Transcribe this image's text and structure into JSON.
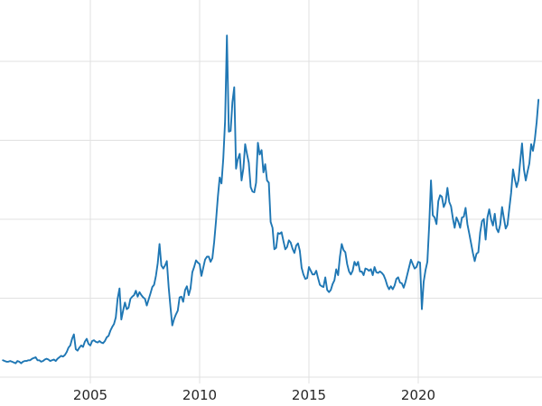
{
  "chart": {
    "line_color": "#1f77b4",
    "grid_color": "#e1e1e1",
    "tick_label_color": "#262626"
  },
  "chart_data": {
    "type": "line",
    "title": "",
    "xlabel": "",
    "ylabel": "",
    "legend": false,
    "grid": true,
    "x_tick_labels": [
      "2005",
      "2010",
      "2015",
      "2020"
    ],
    "x_ticks": [
      2005,
      2010,
      2015,
      2020
    ],
    "x_start_year": 2001,
    "x_step_years": 0.0833333,
    "xlim": [
      2000.9,
      2025.6
    ],
    "ylim": [
      0,
      53
    ],
    "values": [
      4.6,
      4.5,
      4.4,
      4.4,
      4.5,
      4.4,
      4.3,
      4.2,
      4.5,
      4.4,
      4.2,
      4.4,
      4.5,
      4.5,
      4.6,
      4.6,
      4.8,
      4.9,
      5.0,
      4.6,
      4.6,
      4.4,
      4.5,
      4.7,
      4.8,
      4.7,
      4.5,
      4.6,
      4.7,
      4.5,
      4.8,
      5.0,
      5.2,
      5.1,
      5.3,
      5.7,
      6.3,
      6.6,
      7.5,
      8.1,
      6.1,
      5.9,
      6.3,
      6.6,
      6.4,
      7.1,
      7.5,
      6.8,
      6.6,
      7.2,
      7.3,
      7.1,
      7.0,
      7.2,
      7.0,
      6.9,
      7.2,
      7.7,
      7.9,
      8.6,
      9.1,
      9.5,
      10.4,
      12.9,
      14.3,
      10.1,
      11.3,
      12.4,
      11.5,
      11.7,
      12.9,
      13.2,
      13.4,
      14.0,
      13.2,
      13.8,
      13.4,
      13.1,
      12.9,
      12.0,
      12.8,
      13.6,
      14.5,
      14.8,
      16.0,
      17.7,
      20.3,
      17.4,
      17.0,
      17.4,
      18.0,
      14.5,
      11.8,
      9.3,
      10.2,
      10.8,
      11.3,
      13.1,
      13.2,
      12.5,
      14.1,
      14.6,
      13.4,
      14.3,
      16.5,
      17.2,
      18.1,
      17.8,
      17.6,
      16.0,
      17.1,
      18.2,
      18.6,
      18.6,
      17.9,
      18.4,
      20.6,
      23.4,
      26.7,
      29.3,
      28.5,
      31.9,
      37.0,
      48.5,
      35.5,
      35.6,
      39.5,
      41.5,
      30.5,
      31.8,
      32.5,
      28.9,
      30.5,
      33.8,
      32.5,
      31.3,
      28.0,
      27.4,
      27.3,
      28.6,
      34.0,
      32.4,
      33.0,
      30.0,
      31.1,
      28.9,
      28.6,
      23.3,
      22.5,
      19.6,
      19.8,
      21.8,
      21.7,
      21.9,
      20.7,
      19.6,
      19.9,
      20.8,
      20.5,
      19.7,
      19.1,
      20.1,
      20.4,
      19.4,
      17.1,
      16.2,
      15.6,
      15.7,
      17.2,
      16.7,
      16.2,
      16.2,
      16.7,
      15.7,
      14.8,
      14.6,
      14.5,
      15.8,
      14.1,
      13.8,
      14.1,
      14.9,
      15.4,
      16.9,
      16.1,
      18.6,
      20.3,
      19.5,
      19.2,
      17.6,
      16.6,
      16.2,
      16.7,
      17.9,
      17.4,
      17.9,
      16.6,
      16.6,
      16.1,
      17.0,
      16.9,
      16.7,
      16.9,
      16.1,
      17.2,
      16.5,
      16.4,
      16.6,
      16.4,
      16.1,
      15.5,
      14.7,
      14.2,
      14.6,
      14.2,
      14.7,
      15.6,
      15.8,
      15.1,
      15.0,
      14.4,
      15.2,
      16.2,
      17.2,
      18.2,
      17.6,
      17.0,
      17.2,
      17.9,
      17.8,
      11.5,
      15.2,
      16.8,
      17.9,
      22.8,
      28.9,
      24.2,
      23.9,
      23.0,
      26.1,
      26.9,
      26.7,
      25.3,
      25.9,
      27.9,
      26.0,
      25.4,
      23.8,
      22.5,
      23.9,
      23.3,
      22.5,
      23.9,
      24.0,
      25.2,
      23.0,
      21.7,
      20.4,
      19.1,
      18.0,
      19.0,
      19.2,
      21.9,
      23.4,
      23.7,
      20.9,
      23.9,
      25.0,
      23.6,
      22.8,
      24.4,
      22.4,
      21.9,
      22.9,
      25.3,
      23.8,
      22.4,
      22.9,
      25.1,
      27.2,
      30.4,
      29.1,
      28.0,
      28.9,
      31.5,
      33.9,
      30.4,
      28.9,
      30.1,
      31.2,
      33.8,
      32.9,
      34.5,
      36.8,
      39.8
    ]
  }
}
